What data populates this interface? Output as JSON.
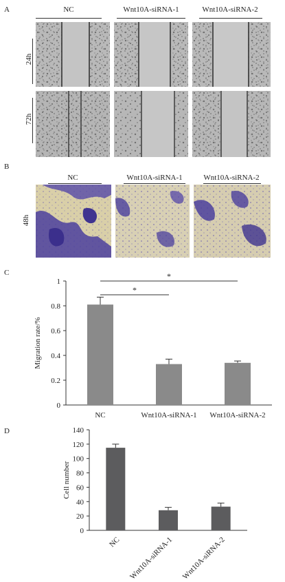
{
  "panel_a": {
    "letter": "A",
    "columns": [
      "NC",
      "Wnt10A-siRNA-1",
      "Wnt10A-siRNA-2"
    ],
    "rows": [
      "24h",
      "72h"
    ]
  },
  "panel_b": {
    "letter": "B",
    "columns": [
      "NC",
      "Wnt10A-siRNA-1",
      "Wnt10A-siRNA-2"
    ],
    "row": "48h"
  },
  "colors": {
    "scratch_bg": "#b9b9b9",
    "stain_bg": "#d9cfa8",
    "stain_purple": "#4b3f9e",
    "bar_light": "#8a8a8a",
    "bar_dark": "#5c5c5e"
  },
  "chart_data": [
    {
      "panel": "C",
      "type": "bar",
      "categories": [
        "NC",
        "Wnt10A-siRNA-1",
        "Wnt10A-siRNA-2"
      ],
      "values": [
        0.81,
        0.33,
        0.34
      ],
      "errors": [
        0.06,
        0.04,
        0.015
      ],
      "ylabel": "Migration rate/%",
      "ylim": [
        0,
        1
      ],
      "yticks": [
        "0",
        "0.2",
        "0.4",
        "0.6",
        "0.8",
        "1"
      ],
      "significance": [
        {
          "from": "NC",
          "to": "Wnt10A-siRNA-1",
          "label": "*"
        },
        {
          "from": "NC",
          "to": "Wnt10A-siRNA-2",
          "label": "*"
        }
      ]
    },
    {
      "panel": "D",
      "type": "bar",
      "categories": [
        "NC",
        "Wnt10A-siRNA-1",
        "Wnt10A-siRNA-2"
      ],
      "values": [
        115,
        28,
        33
      ],
      "errors": [
        5,
        4,
        5
      ],
      "ylabel": "Cell number",
      "ylim": [
        0,
        140
      ],
      "yticks": [
        "0",
        "20",
        "40",
        "60",
        "80",
        "100",
        "120",
        "140"
      ],
      "xtick_rotation": "rotated"
    }
  ]
}
